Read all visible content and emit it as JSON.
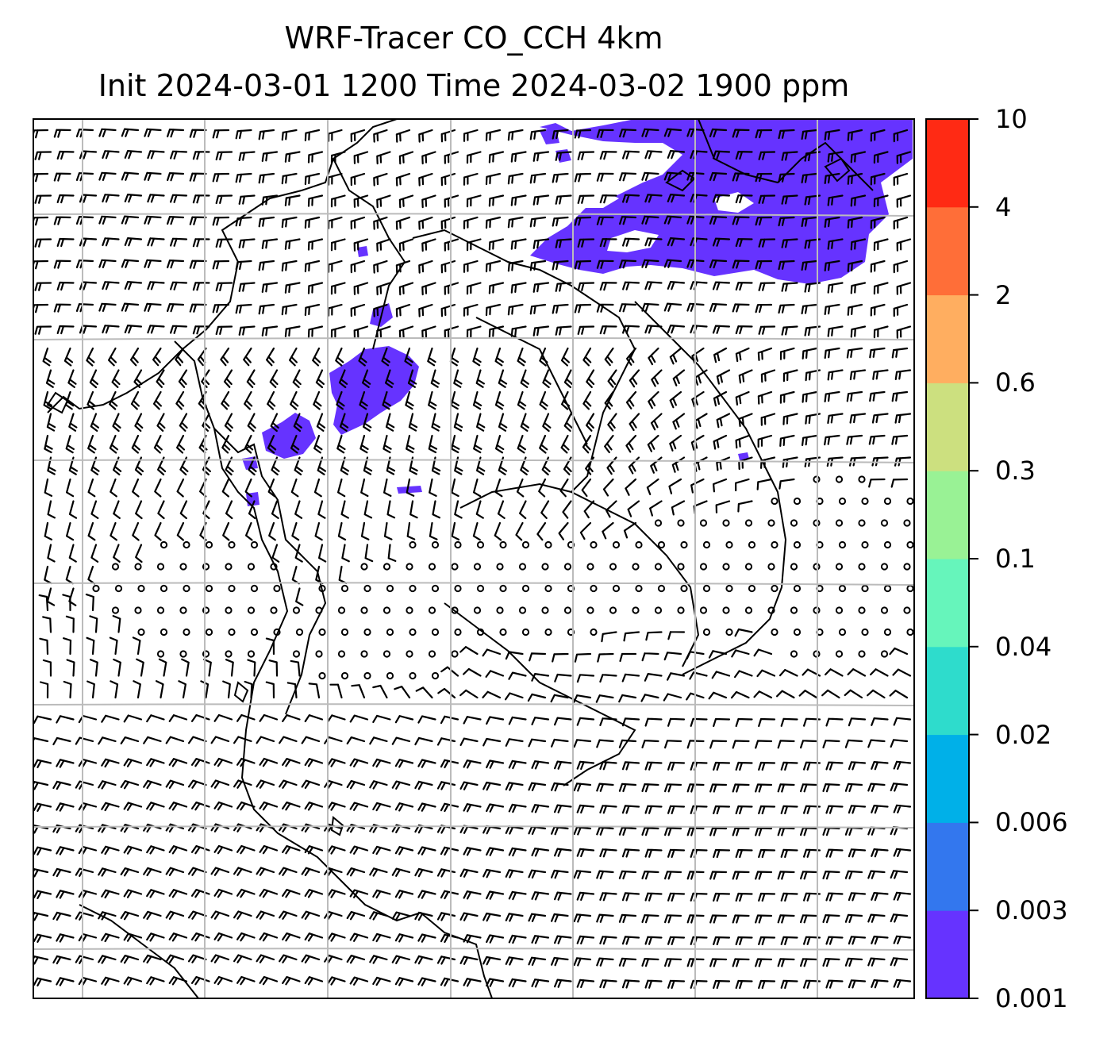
{
  "title": {
    "line1": "WRF-Tracer CO_CCH 4km",
    "line2": "Init 2024-03-01 1200 Time 2024-03-02 1900 ppm"
  },
  "colorbar": {
    "levels": [
      "0.001",
      "0.003",
      "0.006",
      "0.02",
      "0.04",
      "0.1",
      "0.3",
      "0.6",
      "2",
      "4",
      "10"
    ],
    "colors": [
      "#6633ff",
      "#3377ee",
      "#00b0e8",
      "#2edccc",
      "#66f5bb",
      "#99f295",
      "#cce07f",
      "#ffae60",
      "#ff6e38",
      "#ff2a14"
    ]
  },
  "map": {
    "grid_color": "#bbbbbb",
    "tracer_color": "#6633ff",
    "coastline_color": "#000000",
    "barb_color": "#000000"
  }
}
